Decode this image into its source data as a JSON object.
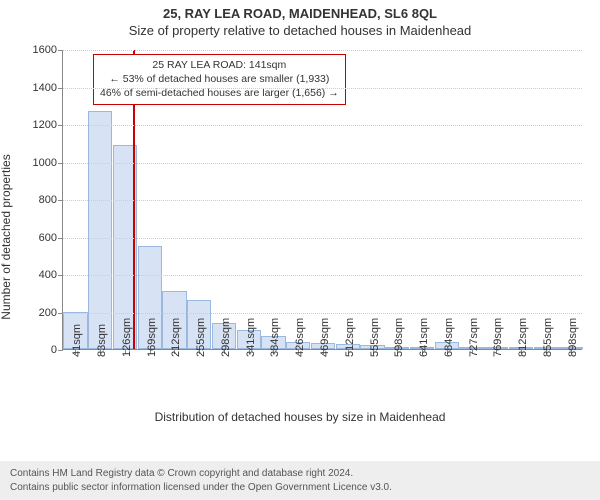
{
  "title_main": "25, RAY LEA ROAD, MAIDENHEAD, SL6 8QL",
  "title_sub": "Size of property relative to detached houses in Maidenhead",
  "y_axis_label": "Number of detached properties",
  "x_axis_label": "Distribution of detached houses by size in Maidenhead",
  "chart": {
    "type": "histogram",
    "background_color": "#ffffff",
    "grid_color": "#cccccc",
    "axis_color": "#888888",
    "bar_fill": "#d7e3f4",
    "bar_border": "#9bb8de",
    "marker_color": "#cc0000",
    "ylim": [
      0,
      1600
    ],
    "y_ticks": [
      0,
      200,
      400,
      600,
      800,
      1000,
      1200,
      1400,
      1600
    ],
    "x_tick_labels": [
      "41sqm",
      "83sqm",
      "126sqm",
      "169sqm",
      "212sqm",
      "255sqm",
      "298sqm",
      "341sqm",
      "384sqm",
      "426sqm",
      "469sqm",
      "512sqm",
      "555sqm",
      "598sqm",
      "641sqm",
      "684sqm",
      "727sqm",
      "769sqm",
      "812sqm",
      "855sqm",
      "898sqm"
    ],
    "bar_values": [
      195,
      1270,
      1090,
      550,
      310,
      260,
      140,
      100,
      70,
      40,
      30,
      25,
      22,
      10,
      5,
      35,
      5,
      4,
      3,
      2,
      1
    ],
    "marker_value_sqm": 141,
    "x_domain": [
      41,
      898
    ]
  },
  "callout": {
    "line1": "25 RAY LEA ROAD: 141sqm",
    "line2": "← 53% of detached houses are smaller (1,933)",
    "line3": "46% of semi-detached houses are larger (1,656) →"
  },
  "footer": {
    "line1": "Contains HM Land Registry data © Crown copyright and database right 2024.",
    "line2": "Contains public sector information licensed under the Open Government Licence v3.0."
  },
  "fonts": {
    "title_size_pt": 13,
    "axis_label_size_pt": 12,
    "tick_size_pt": 11,
    "callout_size_pt": 10.5,
    "footer_size_pt": 10
  }
}
